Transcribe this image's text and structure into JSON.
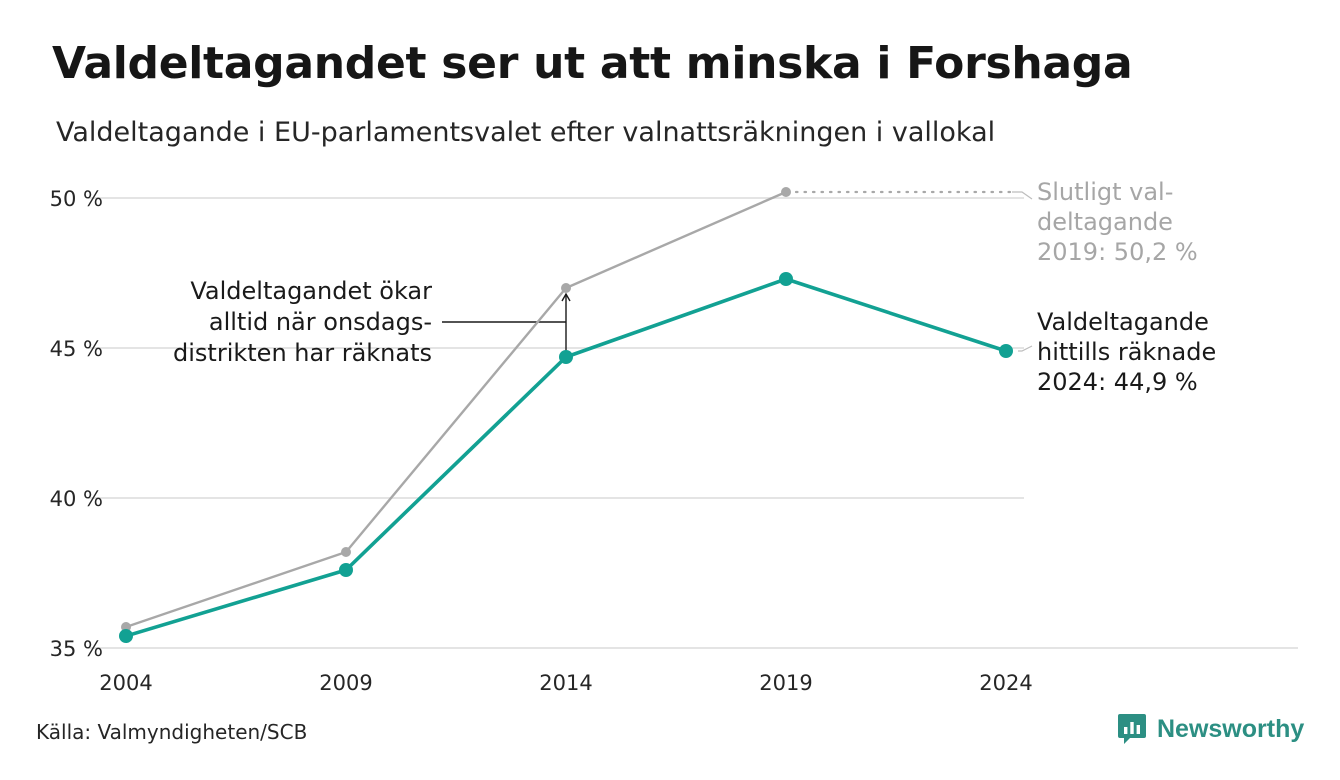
{
  "header": {
    "title": "Valdeltagandet ser ut att minska i Forshaga",
    "subtitle": "Valdeltagande i EU-parlamentsvalet efter valnattsräkningen i vallokal"
  },
  "footer": {
    "source": "Källa: Valmyndigheten/SCB",
    "brand": "Newsworthy"
  },
  "chart_data": {
    "type": "line",
    "x": [
      "2004",
      "2009",
      "2014",
      "2019",
      "2024"
    ],
    "ylim": [
      35,
      50
    ],
    "yticks": [
      35,
      40,
      45,
      50
    ],
    "ytick_labels": [
      "35 %",
      "40 %",
      "45 %",
      "50 %"
    ],
    "grid": true,
    "series": [
      {
        "id": "final",
        "values": [
          35.7,
          38.2,
          47.0,
          50.2,
          null
        ],
        "color": "#a8a8a8"
      },
      {
        "id": "election_night",
        "values": [
          35.4,
          37.6,
          44.7,
          47.3,
          44.9
        ],
        "color": "#12a193"
      }
    ],
    "annotations": {
      "final_label": [
        "Slutligt val-",
        "deltagande",
        "2019: 50,2 %"
      ],
      "current_label": [
        "Valdeltagande",
        "hittills räknade",
        "2024: 44,9 %"
      ],
      "gap_note": [
        "Valdeltagandet ökar",
        "alltid när onsdags-",
        "distrikten har räknats"
      ]
    }
  }
}
